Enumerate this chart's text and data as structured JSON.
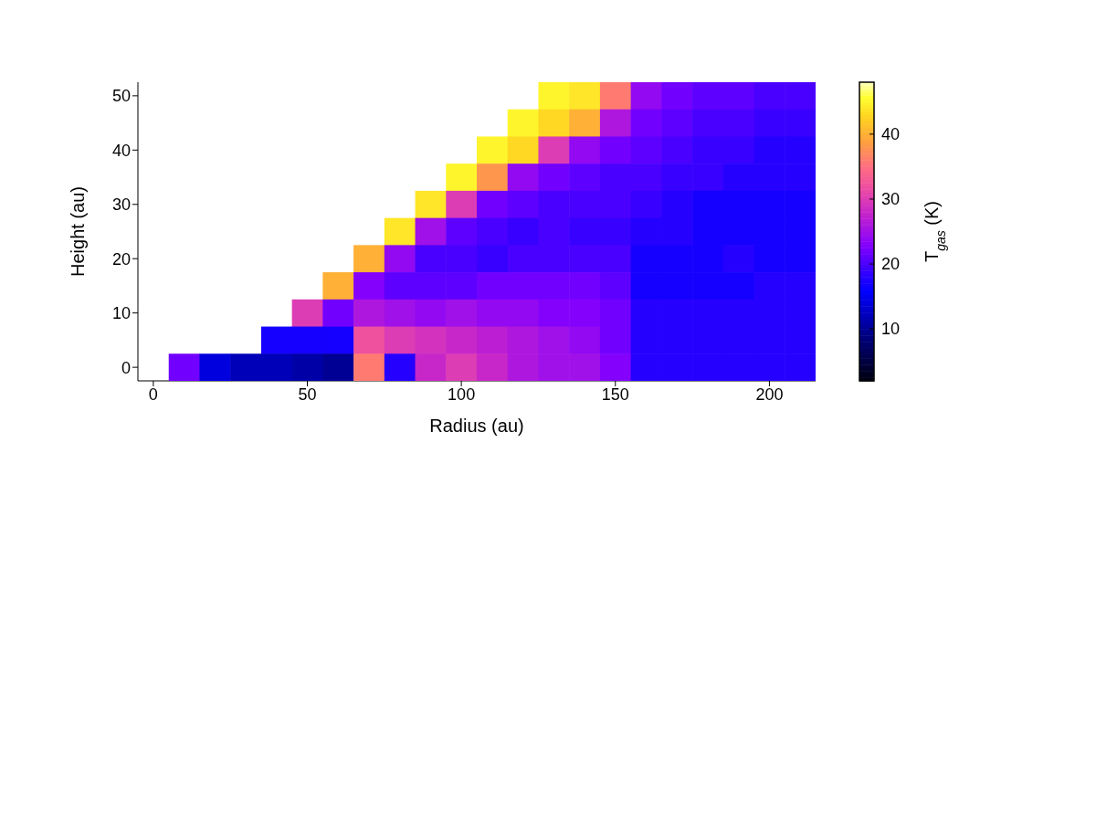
{
  "chart_data": {
    "type": "heatmap",
    "xlabel": "Radius (au)",
    "ylabel": "Height (au)",
    "clabel": "T$_{gas}$ (K)",
    "clim": [
      2,
      48
    ],
    "cticks": [
      10,
      20,
      30,
      40
    ],
    "categories": [
      "0",
      null,
      null,
      null,
      null,
      "50",
      null,
      null,
      null,
      null,
      "100",
      null,
      null,
      null,
      null,
      "150",
      null,
      null,
      null,
      null,
      "200",
      null
    ],
    "y_categories": [
      "50",
      null,
      "40",
      null,
      "30",
      null,
      "20",
      null,
      "10",
      null,
      "0"
    ],
    "cells": [
      [
        null,
        null,
        null,
        null,
        null,
        null,
        null,
        null,
        null,
        null,
        null,
        null,
        null,
        45,
        44,
        36,
        24,
        22,
        21,
        21,
        20,
        20
      ],
      [
        null,
        null,
        null,
        null,
        null,
        null,
        null,
        null,
        null,
        null,
        null,
        null,
        45,
        43,
        40,
        26,
        22,
        21,
        20,
        20,
        19,
        19
      ],
      [
        null,
        null,
        null,
        null,
        null,
        null,
        null,
        null,
        null,
        null,
        null,
        45,
        43,
        30,
        24,
        22,
        21,
        20,
        19,
        19,
        18,
        18
      ],
      [
        null,
        null,
        null,
        null,
        null,
        null,
        null,
        null,
        null,
        null,
        45,
        38,
        24,
        22,
        21,
        20,
        20,
        19,
        19,
        18,
        18,
        18
      ],
      [
        null,
        null,
        null,
        null,
        null,
        null,
        null,
        null,
        null,
        44,
        30,
        22,
        21,
        20,
        20,
        20,
        19,
        18,
        17,
        17,
        17,
        17
      ],
      [
        null,
        null,
        null,
        null,
        null,
        null,
        null,
        null,
        44,
        25,
        21,
        20,
        19,
        20,
        19,
        19,
        18,
        18,
        17,
        17,
        17,
        17
      ],
      [
        null,
        null,
        null,
        null,
        null,
        null,
        null,
        40,
        24,
        20,
        20,
        19,
        20,
        20,
        20,
        20,
        17,
        17,
        17,
        18,
        17,
        17
      ],
      [
        null,
        null,
        null,
        null,
        null,
        null,
        40,
        23,
        21,
        21,
        21,
        22,
        22,
        22,
        22,
        21,
        17,
        17,
        17,
        17,
        18,
        18
      ],
      [
        null,
        null,
        null,
        null,
        null,
        30,
        22,
        26,
        25,
        24,
        25,
        24,
        24,
        23,
        23,
        22,
        18,
        18,
        18,
        18,
        18,
        18
      ],
      [
        null,
        null,
        null,
        null,
        17,
        17,
        17,
        32,
        30,
        29,
        28,
        27,
        26,
        25,
        24,
        22,
        18,
        18,
        18,
        18,
        18,
        18
      ],
      [
        null,
        22,
        14,
        12,
        12,
        11,
        10,
        36,
        18,
        28,
        30,
        28,
        26,
        25,
        25,
        23,
        18,
        18,
        18,
        18,
        18,
        18
      ]
    ]
  }
}
